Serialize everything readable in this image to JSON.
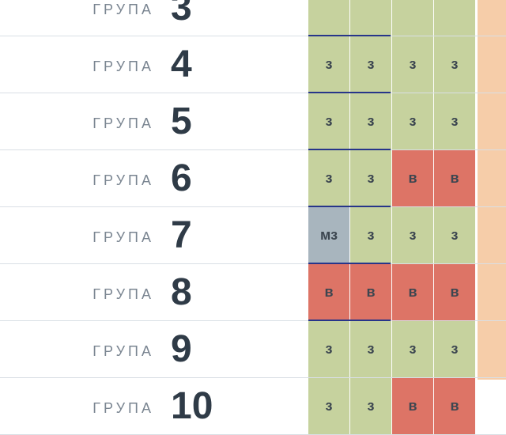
{
  "group_word": "ГРУПА",
  "rows": [
    {
      "num": "3",
      "cells": [
        "",
        "",
        "",
        ""
      ],
      "cell_types": [
        "z",
        "z",
        "z",
        "z"
      ],
      "mark_top": false,
      "mark_bottom": true
    },
    {
      "num": "4",
      "cells": [
        "з",
        "з",
        "з",
        "з"
      ],
      "cell_types": [
        "z",
        "z",
        "z",
        "z"
      ],
      "mark_top": false,
      "mark_bottom": true
    },
    {
      "num": "5",
      "cells": [
        "з",
        "з",
        "з",
        "з"
      ],
      "cell_types": [
        "z",
        "z",
        "z",
        "z"
      ],
      "mark_top": false,
      "mark_bottom": true
    },
    {
      "num": "6",
      "cells": [
        "з",
        "з",
        "в",
        "в"
      ],
      "cell_types": [
        "z",
        "z",
        "v",
        "v"
      ],
      "mark_top": false,
      "mark_bottom": true
    },
    {
      "num": "7",
      "cells": [
        "мз",
        "з",
        "з",
        "з"
      ],
      "cell_types": [
        "mz",
        "z",
        "z",
        "z"
      ],
      "mark_top": false,
      "mark_bottom": true
    },
    {
      "num": "8",
      "cells": [
        "в",
        "в",
        "в",
        "в"
      ],
      "cell_types": [
        "v",
        "v",
        "v",
        "v"
      ],
      "mark_top": false,
      "mark_bottom": true
    },
    {
      "num": "9",
      "cells": [
        "з",
        "з",
        "з",
        "з"
      ],
      "cell_types": [
        "z",
        "z",
        "z",
        "z"
      ],
      "mark_top": false,
      "mark_bottom": false
    },
    {
      "num": "10",
      "cells": [
        "з",
        "з",
        "в",
        "в"
      ],
      "cell_types": [
        "z",
        "z",
        "v",
        "v"
      ],
      "mark_top": false,
      "mark_bottom": false
    }
  ],
  "colors": {
    "status_z": "#c6d29e",
    "status_v": "#dd7466",
    "status_mz": "#a8b5be",
    "side_strip": "#f6cda9",
    "marker": "#27358a"
  }
}
